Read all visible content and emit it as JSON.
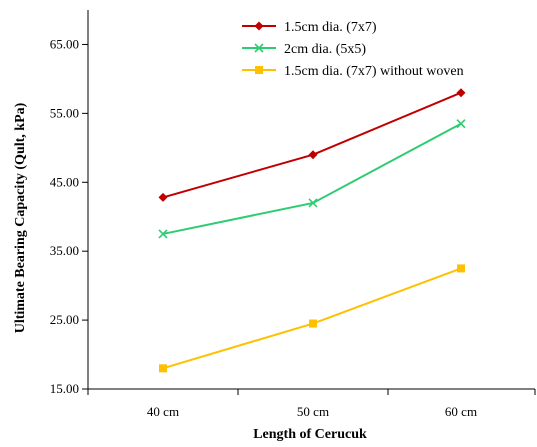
{
  "chart_data": {
    "type": "line",
    "title": "",
    "xlabel": "Length of Cerucuk",
    "ylabel": "Ultimate Bearing Capacity (Qult, kPa)",
    "categories": [
      "40 cm",
      "50 cm",
      "60 cm"
    ],
    "ylim": [
      15,
      70
    ],
    "yticks": [
      "15.00",
      "25.00",
      "35.00",
      "45.00",
      "55.00",
      "65.00"
    ],
    "grid": false,
    "legend_position": "top-right",
    "series": [
      {
        "name": "1.5cm dia. (7x7)",
        "values": [
          42.8,
          49.0,
          58.0
        ],
        "color": "#c00000",
        "marker": "diamond"
      },
      {
        "name": "2cm dia. (5x5)",
        "values": [
          37.5,
          42.0,
          53.5
        ],
        "color": "#2ecc71",
        "marker": "x"
      },
      {
        "name": "1.5cm dia. (7x7) without woven",
        "values": [
          18.0,
          24.5,
          32.5
        ],
        "color": "#ffc000",
        "marker": "square"
      }
    ]
  }
}
